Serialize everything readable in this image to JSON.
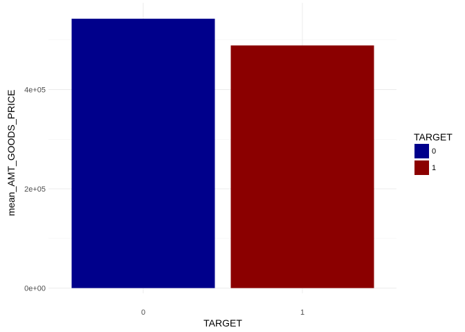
{
  "chart_data": {
    "type": "bar",
    "categories": [
      "0",
      "1"
    ],
    "values": [
      542736,
      488972
    ],
    "xlabel": "TARGET",
    "ylabel": "mean_AMT_GOODS_PRICE",
    "ylim": [
      0,
      570000
    ],
    "yticks": [
      0,
      200000,
      400000
    ],
    "ytick_labels": [
      "0e+00",
      "2e+05",
      "4e+05"
    ],
    "bar_colors": [
      "#00008b",
      "#8b0000"
    ],
    "grid": true,
    "legend": {
      "title": "TARGET",
      "position": "right",
      "entries": [
        {
          "label": "0",
          "color": "#00008b"
        },
        {
          "label": "1",
          "color": "#8b0000"
        }
      ]
    }
  }
}
